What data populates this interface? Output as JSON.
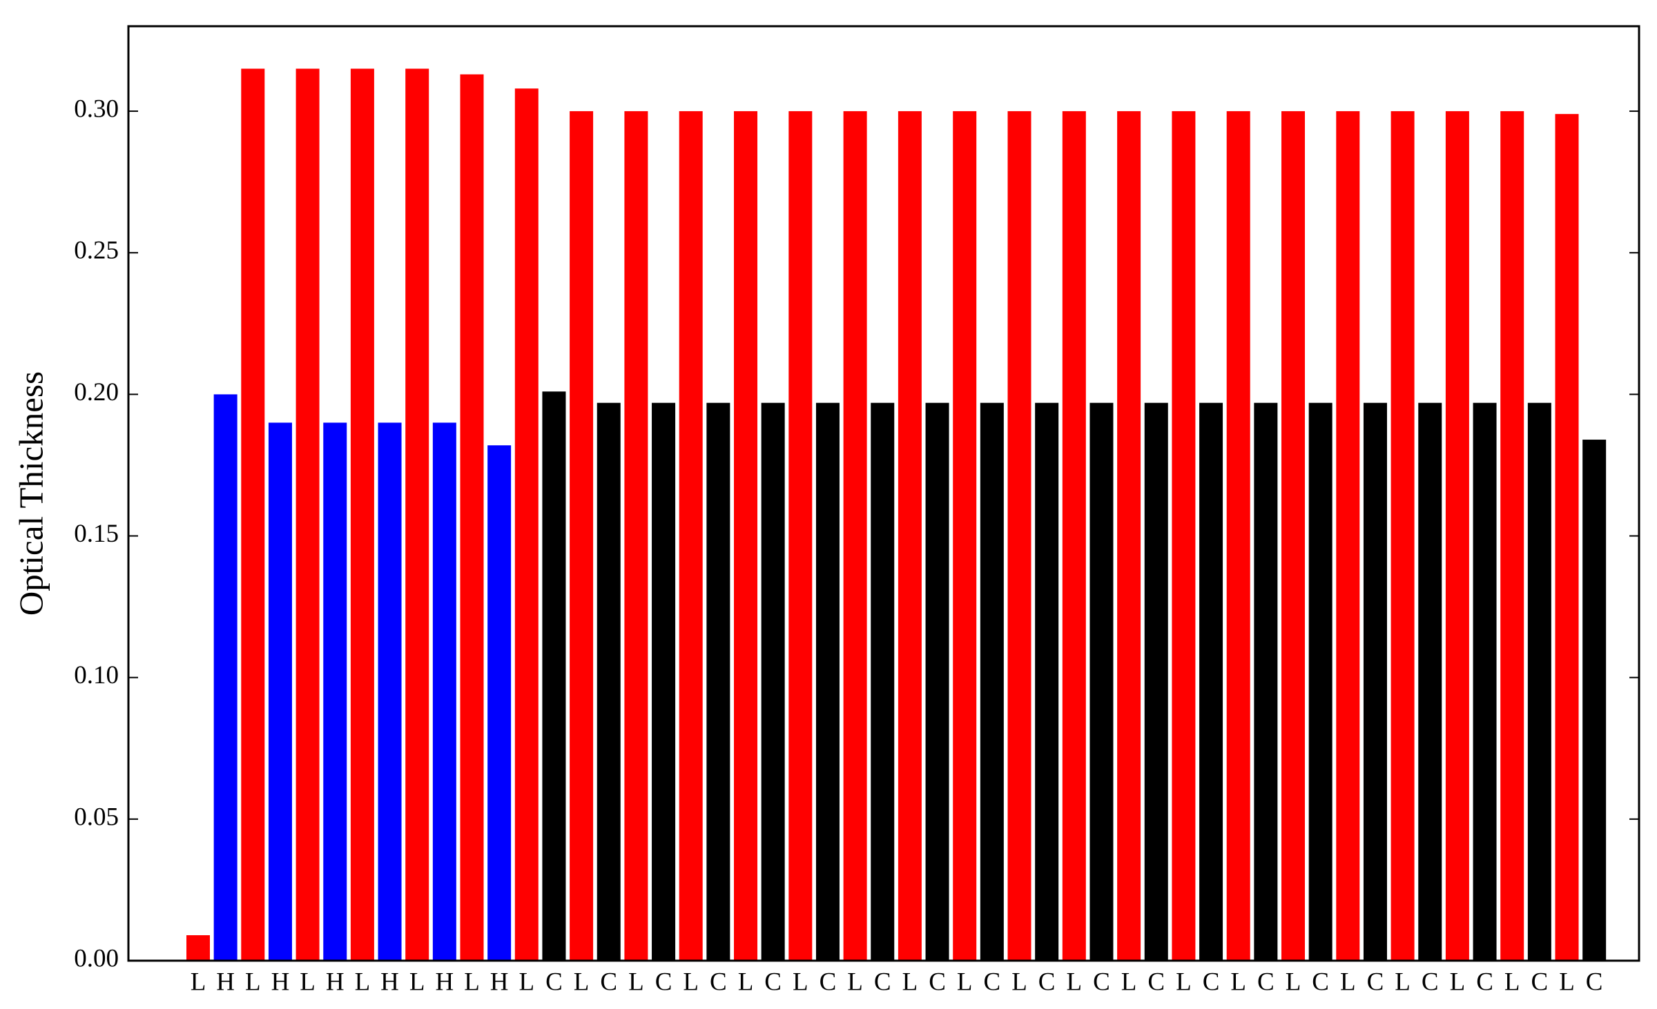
{
  "chart_data": {
    "type": "bar",
    "y_label": "Optical Thickness",
    "categories": [
      "L",
      "H",
      "L",
      "H",
      "L",
      "H",
      "L",
      "H",
      "L",
      "H",
      "L",
      "H",
      "L",
      "C",
      "L",
      "C",
      "L",
      "C",
      "L",
      "C",
      "L",
      "C",
      "L",
      "C",
      "L",
      "C",
      "L",
      "C",
      "L",
      "C",
      "L",
      "C",
      "L",
      "C",
      "L",
      "C",
      "L",
      "C",
      "L",
      "C",
      "L",
      "C",
      "L",
      "C",
      "L",
      "C",
      "L",
      "C",
      "L",
      "C",
      "L",
      "C"
    ],
    "values": [
      0.009,
      0.2,
      0.315,
      0.19,
      0.315,
      0.19,
      0.315,
      0.19,
      0.315,
      0.19,
      0.313,
      0.182,
      0.308,
      0.201,
      0.3,
      0.197,
      0.3,
      0.197,
      0.3,
      0.197,
      0.3,
      0.197,
      0.3,
      0.197,
      0.3,
      0.197,
      0.3,
      0.197,
      0.3,
      0.197,
      0.3,
      0.197,
      0.3,
      0.197,
      0.3,
      0.197,
      0.3,
      0.197,
      0.3,
      0.197,
      0.3,
      0.197,
      0.3,
      0.197,
      0.3,
      0.197,
      0.3,
      0.197,
      0.3,
      0.197,
      0.299,
      0.184
    ],
    "colors": [
      "#ff0000",
      "#0000ff",
      "#ff0000",
      "#0000ff",
      "#ff0000",
      "#0000ff",
      "#ff0000",
      "#0000ff",
      "#ff0000",
      "#0000ff",
      "#ff0000",
      "#0000ff",
      "#ff0000",
      "#000000",
      "#ff0000",
      "#000000",
      "#ff0000",
      "#000000",
      "#ff0000",
      "#000000",
      "#ff0000",
      "#000000",
      "#ff0000",
      "#000000",
      "#ff0000",
      "#000000",
      "#ff0000",
      "#000000",
      "#ff0000",
      "#000000",
      "#ff0000",
      "#000000",
      "#ff0000",
      "#000000",
      "#ff0000",
      "#000000",
      "#ff0000",
      "#000000",
      "#ff0000",
      "#000000",
      "#ff0000",
      "#000000",
      "#ff0000",
      "#000000",
      "#ff0000",
      "#000000",
      "#ff0000",
      "#000000",
      "#ff0000",
      "#000000",
      "#ff0000",
      "#000000"
    ],
    "ylim": [
      0,
      0.33
    ],
    "yticks": [
      {
        "value": 0,
        "label": "0.00"
      },
      {
        "value": 0.05,
        "label": "0.05"
      },
      {
        "value": 0.1,
        "label": "0.10"
      },
      {
        "value": 0.15,
        "label": "0.15"
      },
      {
        "value": 0.2,
        "label": "0.20"
      },
      {
        "value": 0.25,
        "label": "0.25"
      },
      {
        "value": 0.3,
        "label": "0.30"
      }
    ],
    "grid": false
  }
}
